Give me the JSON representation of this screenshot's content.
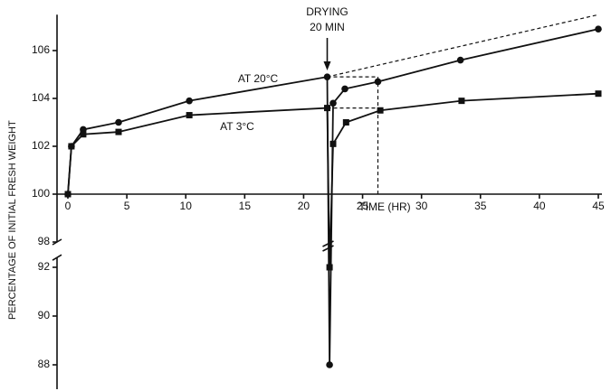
{
  "chart_data": {
    "type": "line",
    "xlabel": "TIME (HR)",
    "ylabel": "PERCENTAGE OF INITIAL FRESH WEIGHT",
    "annotation": "DRYING\n20 MIN",
    "annotation_x": 22,
    "xlim": [
      -0.9,
      45.3
    ],
    "xticks": [
      0,
      5,
      10,
      15,
      20,
      25,
      30,
      35,
      40,
      45
    ],
    "ylim": [
      87,
      107.5
    ],
    "ybreak": [
      92.4,
      98
    ],
    "yticks": [
      88,
      90,
      92,
      98,
      100,
      102,
      104,
      106
    ],
    "color": "#111111",
    "series": [
      {
        "name": "AT 20°C",
        "marker": "circle",
        "color": "#111111",
        "x": [
          0,
          0.3,
          1.3,
          4.3,
          10.3,
          22,
          22.2,
          22.5,
          23.5,
          26.3,
          33.3,
          45
        ],
        "values": [
          100,
          102,
          102.7,
          103.0,
          103.9,
          104.9,
          88,
          103.8,
          104.4,
          104.7,
          105.6,
          106.9
        ]
      },
      {
        "name": "AT 3°C",
        "marker": "square",
        "color": "#111111",
        "x": [
          0,
          0.3,
          1.3,
          4.3,
          10.3,
          22,
          22.2,
          22.5,
          23.6,
          26.5,
          33.4,
          45
        ],
        "values": [
          100,
          102,
          102.5,
          102.6,
          103.3,
          103.6,
          92,
          102.1,
          103.0,
          103.5,
          103.9,
          104.2
        ]
      }
    ],
    "dashed_lines": [
      {
        "x": [
          22,
          45
        ],
        "values": [
          104.9,
          107.5
        ]
      },
      {
        "x": [
          22,
          26.3
        ],
        "values": [
          103.6,
          103.6
        ]
      },
      {
        "x": [
          22,
          26.3,
          26.3
        ],
        "values": [
          104.9,
          104.9,
          100
        ]
      }
    ]
  }
}
